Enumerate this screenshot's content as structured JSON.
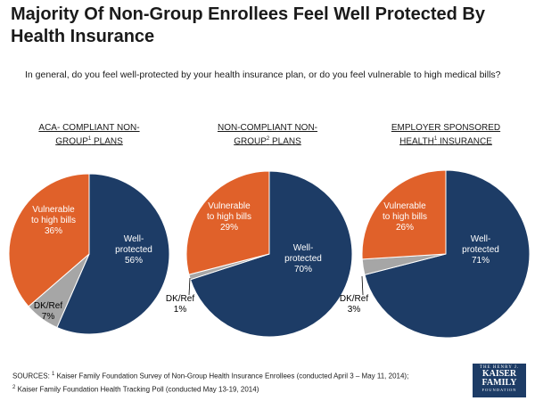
{
  "title": "Majority Of Non-Group Enrollees Feel Well Protected By Health Insurance",
  "question": "In general, do you feel well-protected by your health insurance plan, or do you feel vulnerable to high medical bills?",
  "chart_data": [
    {
      "type": "pie",
      "title": "ACA- COMPLIANT NON-GROUP PLANS",
      "title_line1": "ACA- COMPLIANT NON-",
      "title_line2_pre": "GROUP",
      "title_sup": "1",
      "title_line2_post": " PLANS",
      "slices": [
        {
          "label": "Well-protected",
          "value": 56,
          "color": "#1d3c66",
          "text_color": "#ffffff"
        },
        {
          "label": "DK/Ref",
          "value": 7,
          "color": "#a6a6a6",
          "text_color": "#000000"
        },
        {
          "label": "Vulnerable to high bills",
          "value": 36,
          "color": "#e0612a",
          "text_color": "#ffffff"
        }
      ]
    },
    {
      "type": "pie",
      "title": "NON-COMPLIANT NON-GROUP PLANS",
      "title_line1": "NON-COMPLIANT NON-",
      "title_line2_pre": "GROUP",
      "title_sup": "2",
      "title_line2_post": " PLANS",
      "slices": [
        {
          "label": "Well-protected",
          "value": 70,
          "color": "#1d3c66",
          "text_color": "#ffffff"
        },
        {
          "label": "DK/Ref",
          "value": 1,
          "color": "#a6a6a6",
          "text_color": "#000000"
        },
        {
          "label": "Vulnerable to high bills",
          "value": 29,
          "color": "#e0612a",
          "text_color": "#ffffff"
        }
      ]
    },
    {
      "type": "pie",
      "title": "EMPLOYER SPONSORED HEALTH INSURANCE",
      "title_line1": "EMPLOYER SPONSORED",
      "title_line2_pre": "HEALTH",
      "title_sup": "1",
      "title_line2_post": " INSURANCE",
      "slices": [
        {
          "label": "Well-protected",
          "value": 71,
          "color": "#1d3c66",
          "text_color": "#ffffff"
        },
        {
          "label": "DK/Ref",
          "value": 3,
          "color": "#a6a6a6",
          "text_color": "#000000"
        },
        {
          "label": "Vulnerable to high bills",
          "value": 26,
          "color": "#e0612a",
          "text_color": "#ffffff"
        }
      ]
    }
  ],
  "sources": {
    "line1_prefix": "SOURCES: ",
    "line1_sup": "1",
    "line1_text": " Kaiser Family Foundation Survey of Non-Group Health Insurance Enrollees (conducted April 3 – May 11, 2014);",
    "line2_sup": "2",
    "line2_text": " Kaiser Family Foundation Health Tracking Poll (conducted May 13-19, 2014)"
  },
  "logo": {
    "line1": "THE HENRY J.",
    "line2": "KAISER",
    "line3": "FAMILY",
    "line4": "FOUNDATION"
  }
}
